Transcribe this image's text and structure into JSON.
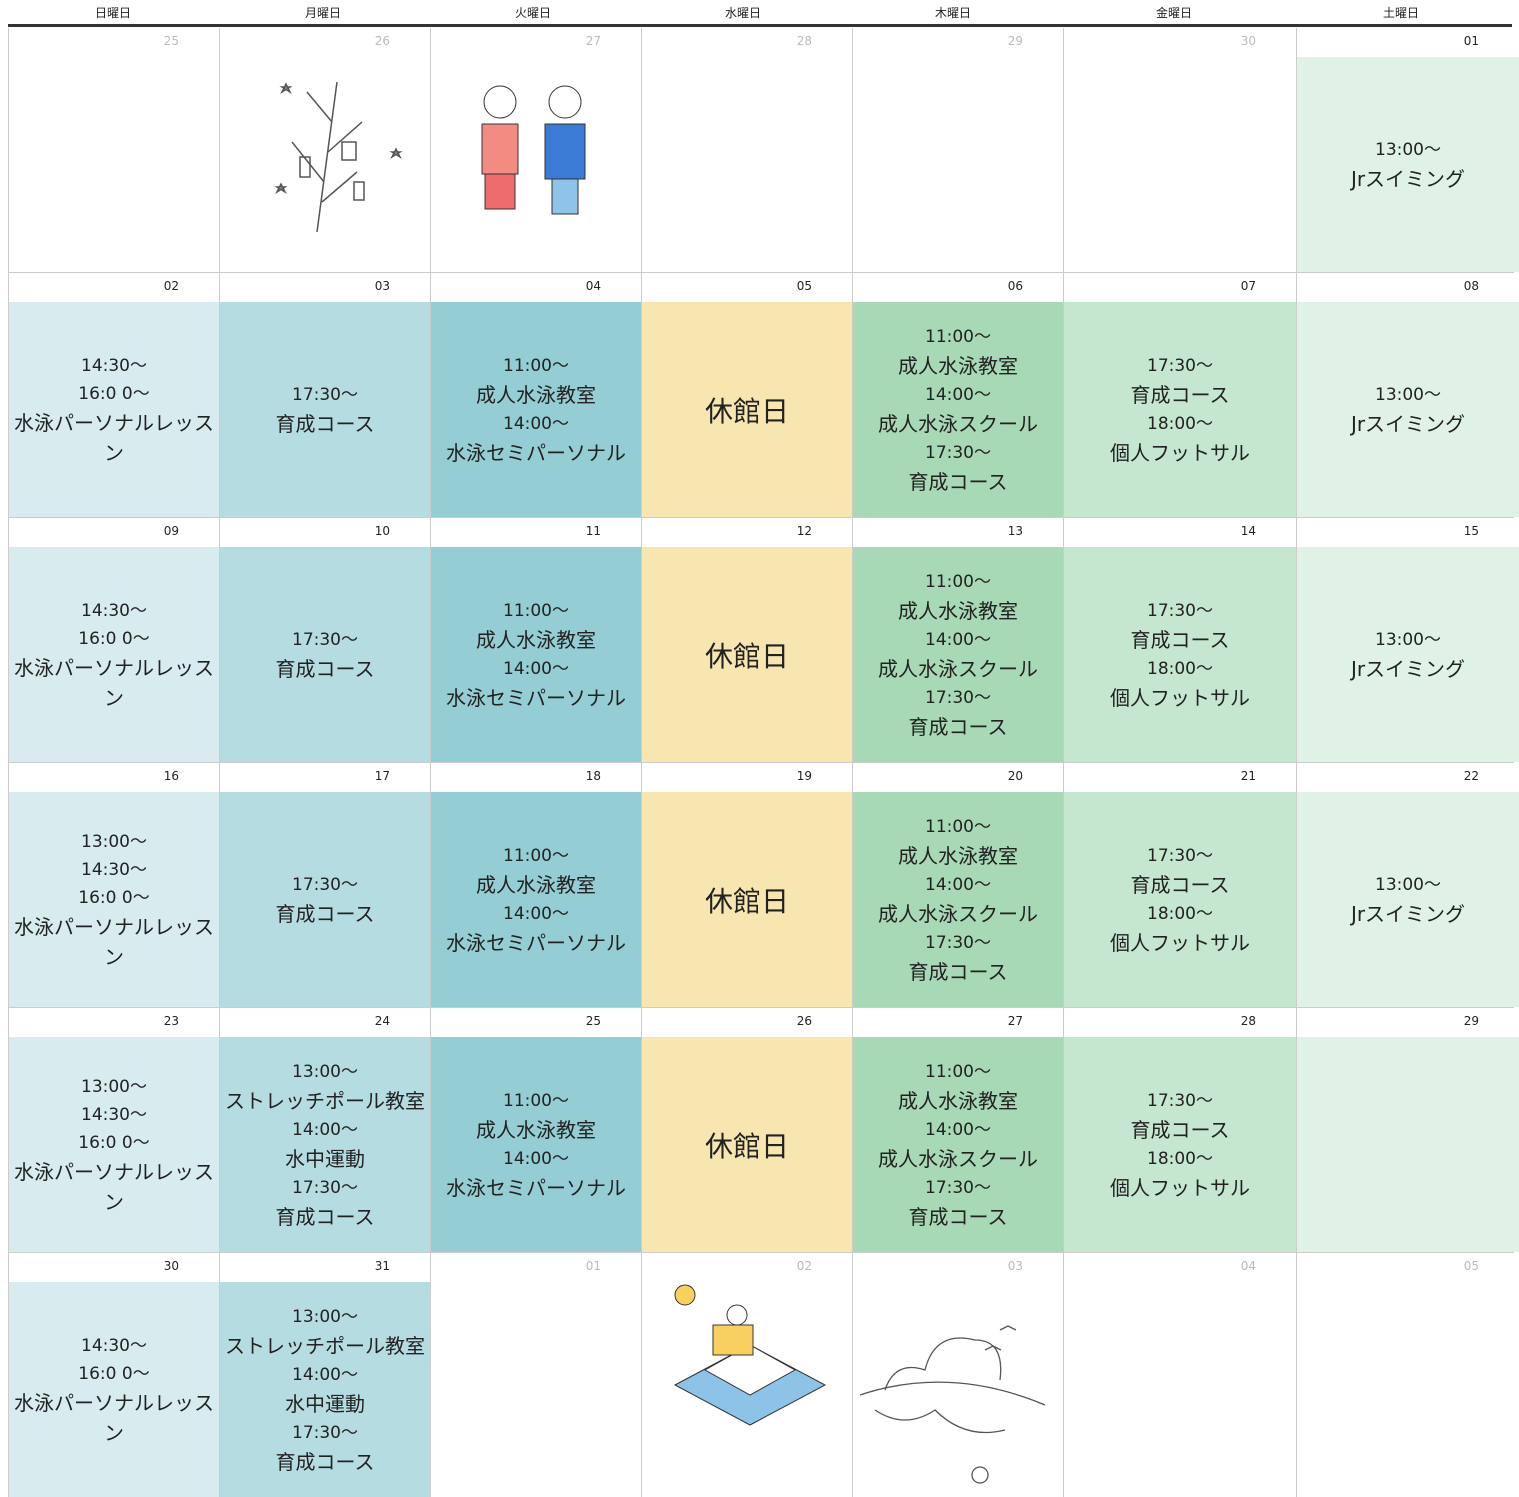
{
  "header": {
    "days": [
      "日曜日",
      "月曜日",
      "火曜日",
      "水曜日",
      "木曜日",
      "金曜日",
      "土曜日"
    ]
  },
  "weeks": [
    {
      "days": [
        {
          "date": "25",
          "outside": true,
          "lines": []
        },
        {
          "date": "26",
          "outside": true,
          "lines": []
        },
        {
          "date": "27",
          "outside": true,
          "lines": []
        },
        {
          "date": "28",
          "outside": true,
          "lines": []
        },
        {
          "date": "29",
          "outside": true,
          "lines": []
        },
        {
          "date": "30",
          "outside": true,
          "lines": []
        },
        {
          "date": "01",
          "lines": [
            {
              "time": "13:00～"
            },
            {
              "title": "Jrスイミング"
            }
          ]
        }
      ]
    },
    {
      "days": [
        {
          "date": "02",
          "lines": [
            {
              "time": "14:30～"
            },
            {
              "time": "16:0 0～"
            },
            {
              "title": "水泳パーソナルレッスン"
            }
          ]
        },
        {
          "date": "03",
          "lines": [
            {
              "time": "17:30～"
            },
            {
              "title": "育成コース"
            }
          ]
        },
        {
          "date": "04",
          "lines": [
            {
              "time": "11:00～"
            },
            {
              "title": "成人水泳教室"
            },
            {
              "time": "14:00～"
            },
            {
              "title": "水泳セミパーソナル"
            }
          ]
        },
        {
          "date": "05",
          "lines": [
            {
              "closed": "休館日"
            }
          ]
        },
        {
          "date": "06",
          "lines": [
            {
              "time": "11:00～"
            },
            {
              "title": "成人水泳教室"
            },
            {
              "time": "14:00～"
            },
            {
              "title": "成人水泳スクール"
            },
            {
              "time": "17:30～"
            },
            {
              "title": "育成コース"
            }
          ]
        },
        {
          "date": "07",
          "lines": [
            {
              "time": "17:30～"
            },
            {
              "title": "育成コース"
            },
            {
              "time": "18:00～"
            },
            {
              "title": "個人フットサル"
            }
          ]
        },
        {
          "date": "08",
          "lines": [
            {
              "time": "13:00～"
            },
            {
              "title": "Jrスイミング"
            }
          ]
        }
      ]
    },
    {
      "days": [
        {
          "date": "09",
          "lines": [
            {
              "time": "14:30～"
            },
            {
              "time": "16:0 0～"
            },
            {
              "title": "水泳パーソナルレッスン"
            }
          ]
        },
        {
          "date": "10",
          "lines": [
            {
              "time": "17:30～"
            },
            {
              "title": "育成コース"
            }
          ]
        },
        {
          "date": "11",
          "lines": [
            {
              "time": "11:00～"
            },
            {
              "title": "成人水泳教室"
            },
            {
              "time": "14:00～"
            },
            {
              "title": "水泳セミパーソナル"
            }
          ]
        },
        {
          "date": "12",
          "lines": [
            {
              "closed": "休館日"
            }
          ]
        },
        {
          "date": "13",
          "lines": [
            {
              "time": "11:00～"
            },
            {
              "title": "成人水泳教室"
            },
            {
              "time": "14:00～"
            },
            {
              "title": "成人水泳スクール"
            },
            {
              "time": "17:30～"
            },
            {
              "title": "育成コース"
            }
          ]
        },
        {
          "date": "14",
          "lines": [
            {
              "time": "17:30～"
            },
            {
              "title": "育成コース"
            },
            {
              "time": "18:00～"
            },
            {
              "title": "個人フットサル"
            }
          ]
        },
        {
          "date": "15",
          "lines": [
            {
              "time": "13:00～"
            },
            {
              "title": "Jrスイミング"
            }
          ]
        }
      ]
    },
    {
      "days": [
        {
          "date": "16",
          "lines": [
            {
              "time": "13:00～"
            },
            {
              "time": "14:30～"
            },
            {
              "time": "16:0 0～"
            },
            {
              "title": "水泳パーソナルレッスン"
            }
          ]
        },
        {
          "date": "17",
          "lines": [
            {
              "time": "17:30～"
            },
            {
              "title": "育成コース"
            }
          ]
        },
        {
          "date": "18",
          "lines": [
            {
              "time": "11:00～"
            },
            {
              "title": "成人水泳教室"
            },
            {
              "time": "14:00～"
            },
            {
              "title": "水泳セミパーソナル"
            }
          ]
        },
        {
          "date": "19",
          "lines": [
            {
              "closed": "休館日"
            }
          ]
        },
        {
          "date": "20",
          "lines": [
            {
              "time": "11:00～"
            },
            {
              "title": "成人水泳教室"
            },
            {
              "time": "14:00～"
            },
            {
              "title": "成人水泳スクール"
            },
            {
              "time": "17:30～"
            },
            {
              "title": "育成コース"
            }
          ]
        },
        {
          "date": "21",
          "lines": [
            {
              "time": "17:30～"
            },
            {
              "title": "育成コース"
            },
            {
              "time": "18:00～"
            },
            {
              "title": "個人フットサル"
            }
          ]
        },
        {
          "date": "22",
          "lines": [
            {
              "time": "13:00～"
            },
            {
              "title": "Jrスイミング"
            }
          ]
        }
      ]
    },
    {
      "days": [
        {
          "date": "23",
          "lines": [
            {
              "time": "13:00～"
            },
            {
              "time": "14:30～"
            },
            {
              "time": "16:0 0～"
            },
            {
              "title": "水泳パーソナルレッスン"
            }
          ]
        },
        {
          "date": "24",
          "lines": [
            {
              "time": "13:00～"
            },
            {
              "title": "ストレッチポール教室"
            },
            {
              "time": "14:00～"
            },
            {
              "title": "水中運動"
            },
            {
              "time": "17:30～"
            },
            {
              "title": "育成コース"
            }
          ]
        },
        {
          "date": "25",
          "lines": [
            {
              "time": "11:00～"
            },
            {
              "title": "成人水泳教室"
            },
            {
              "time": "14:00～"
            },
            {
              "title": "水泳セミパーソナル"
            }
          ]
        },
        {
          "date": "26",
          "lines": [
            {
              "closed": "休館日"
            }
          ]
        },
        {
          "date": "27",
          "lines": [
            {
              "time": "11:00～"
            },
            {
              "title": "成人水泳教室"
            },
            {
              "time": "14:00～"
            },
            {
              "title": "成人水泳スクール"
            },
            {
              "time": "17:30～"
            },
            {
              "title": "育成コース"
            }
          ]
        },
        {
          "date": "28",
          "lines": [
            {
              "time": "17:30～"
            },
            {
              "title": "育成コース"
            },
            {
              "time": "18:00～"
            },
            {
              "title": "個人フットサル"
            }
          ]
        },
        {
          "date": "29",
          "lines": []
        }
      ]
    },
    {
      "days": [
        {
          "date": "30",
          "lines": [
            {
              "time": "14:30～"
            },
            {
              "time": "16:0 0～"
            },
            {
              "title": "水泳パーソナルレッスン"
            }
          ]
        },
        {
          "date": "31",
          "lines": [
            {
              "time": "13:00～"
            },
            {
              "title": "ストレッチポール教室"
            },
            {
              "time": "14:00～"
            },
            {
              "title": "水中運動"
            },
            {
              "time": "17:30～"
            },
            {
              "title": "育成コース"
            }
          ]
        },
        {
          "date": "01",
          "outside": true,
          "lines": []
        },
        {
          "date": "02",
          "outside": true,
          "lines": []
        },
        {
          "date": "03",
          "outside": true,
          "lines": []
        },
        {
          "date": "04",
          "outside": true,
          "lines": []
        },
        {
          "date": "05",
          "outside": true,
          "lines": []
        }
      ]
    }
  ]
}
